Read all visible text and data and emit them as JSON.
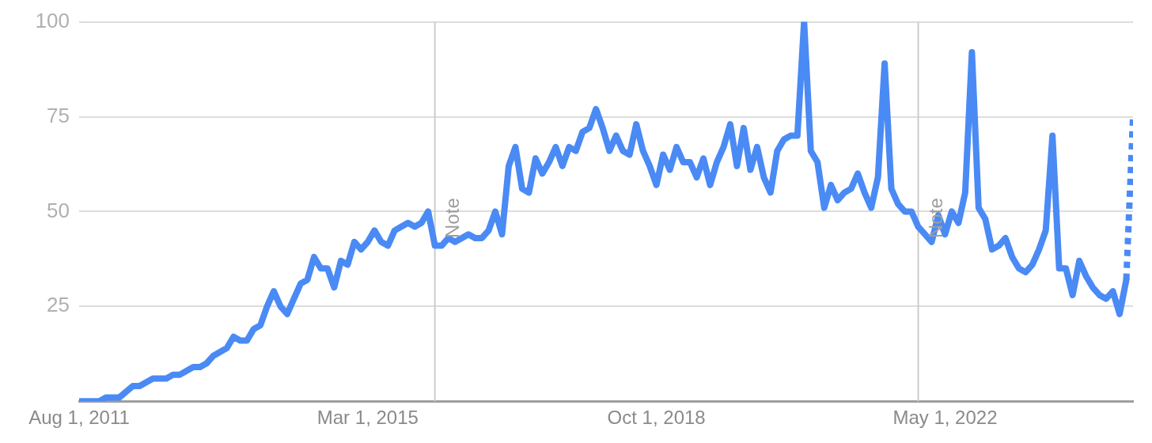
{
  "chart_data": {
    "type": "line",
    "xlim": [
      "2011-08",
      "2024-09"
    ],
    "xticks": [
      {
        "value": "2011-08",
        "label": "Aug 1, 2011"
      },
      {
        "value": "2015-03",
        "label": "Mar 1, 2015"
      },
      {
        "value": "2018-10",
        "label": "Oct 1, 2018"
      },
      {
        "value": "2022-05",
        "label": "May 1, 2022"
      }
    ],
    "ylim": [
      0,
      100
    ],
    "yticks": [
      25,
      50,
      75,
      100
    ],
    "grid": "y",
    "legend": false,
    "marker": "none",
    "line_style": "solid",
    "ref_lines": [
      {
        "axis": "x",
        "value": "2016-01",
        "label": "Note",
        "color": "#cccccc"
      },
      {
        "axis": "x",
        "value": "2022-01",
        "label": "Note",
        "color": "#cccccc"
      }
    ],
    "series": [
      {
        "color": "#4a8af4",
        "x": [
          "2011-08",
          "2011-11",
          "2011-12",
          "2012-02",
          "2012-04",
          "2012-05",
          "2012-07",
          "2012-09",
          "2012-10",
          "2012-11",
          "2013-01",
          "2013-02",
          "2013-03",
          "2013-04",
          "2013-06",
          "2013-07",
          "2013-08",
          "2013-09",
          "2013-10",
          "2013-11",
          "2013-12",
          "2014-01",
          "2014-02",
          "2014-03",
          "2014-04",
          "2014-05",
          "2014-06",
          "2014-07",
          "2014-08",
          "2014-09",
          "2014-10",
          "2014-11",
          "2014-12",
          "2015-01",
          "2015-02",
          "2015-03",
          "2015-04",
          "2015-05",
          "2015-06",
          "2015-07",
          "2015-08",
          "2015-09",
          "2015-10",
          "2015-11",
          "2015-12",
          "2016-01",
          "2016-02",
          "2016-03",
          "2016-04",
          "2016-06",
          "2016-07",
          "2016-08",
          "2016-09",
          "2016-10",
          "2016-11",
          "2016-12",
          "2017-01",
          "2017-02",
          "2017-03",
          "2017-04",
          "2017-05",
          "2017-06",
          "2017-07",
          "2017-08",
          "2017-09",
          "2017-10",
          "2017-11",
          "2017-12",
          "2018-01",
          "2018-02",
          "2018-03",
          "2018-04",
          "2018-05",
          "2018-06",
          "2018-07",
          "2018-08",
          "2018-09",
          "2018-10",
          "2018-11",
          "2018-12",
          "2019-01",
          "2019-02",
          "2019-03",
          "2019-04",
          "2019-05",
          "2019-06",
          "2019-07",
          "2019-08",
          "2019-09",
          "2019-10",
          "2019-11",
          "2019-12",
          "2020-01",
          "2020-02",
          "2020-03",
          "2020-04",
          "2020-05",
          "2020-06",
          "2020-07",
          "2020-08",
          "2020-09",
          "2020-10",
          "2020-11",
          "2020-12",
          "2021-01",
          "2021-02",
          "2021-03",
          "2021-04",
          "2021-05",
          "2021-06",
          "2021-07",
          "2021-08",
          "2021-09",
          "2021-10",
          "2021-11",
          "2021-12",
          "2022-01",
          "2022-02",
          "2022-03",
          "2022-04",
          "2022-05",
          "2022-06",
          "2022-07",
          "2022-08",
          "2022-09",
          "2022-10",
          "2022-11",
          "2022-12",
          "2023-01",
          "2023-02",
          "2023-03",
          "2023-04",
          "2023-05",
          "2023-06",
          "2023-07",
          "2023-08",
          "2023-09",
          "2023-10",
          "2023-11",
          "2023-12",
          "2024-01",
          "2024-02",
          "2024-03",
          "2024-04",
          "2024-05",
          "2024-06",
          "2024-07",
          "2024-08"
        ],
        "values": [
          0,
          0,
          1,
          1,
          4,
          4,
          6,
          6,
          7,
          7,
          9,
          9,
          10,
          12,
          14,
          17,
          16,
          16,
          19,
          20,
          25,
          29,
          25,
          23,
          27,
          31,
          32,
          38,
          35,
          35,
          30,
          37,
          36,
          42,
          40,
          42,
          45,
          42,
          41,
          45,
          46,
          47,
          46,
          47,
          50,
          41,
          41,
          43,
          42,
          44,
          43,
          43,
          45,
          50,
          44,
          62,
          67,
          56,
          55,
          64,
          60,
          63,
          67,
          62,
          67,
          66,
          71,
          72,
          77,
          72,
          66,
          70,
          66,
          65,
          73,
          66,
          62,
          57,
          65,
          61,
          67,
          63,
          63,
          59,
          64,
          57,
          63,
          67,
          73,
          62,
          72,
          61,
          67,
          59,
          55,
          66,
          69,
          70,
          70,
          100,
          66,
          63,
          51,
          57,
          53,
          55,
          56,
          60,
          55,
          51,
          59,
          89,
          56,
          52,
          50,
          50,
          46,
          44,
          42,
          49,
          44,
          50,
          47,
          55,
          92,
          51,
          48,
          40,
          41,
          43,
          38,
          35,
          34,
          36,
          40,
          45,
          70,
          35,
          35,
          28,
          37,
          33,
          30,
          28,
          27,
          29,
          23,
          32
        ]
      },
      {
        "color": "#4a8af4",
        "line_style": "dotted",
        "x": [
          "2024-08",
          "2024-09"
        ],
        "values": [
          32,
          75
        ]
      }
    ]
  }
}
